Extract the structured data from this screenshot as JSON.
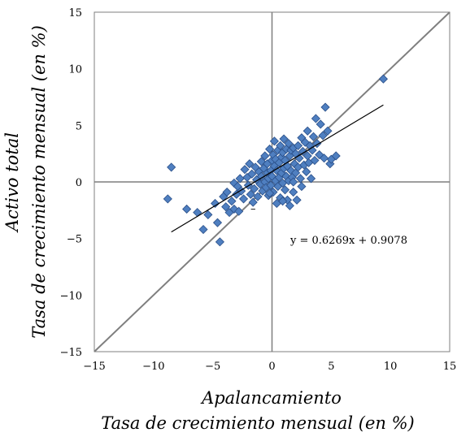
{
  "chart_data": {
    "type": "scatter",
    "title": "",
    "xlabel": "Apalancamiento",
    "xlabel_sub": "Tasa de crecimiento mensual (en %)",
    "ylabel": "Activo total",
    "ylabel_sub": "Tasa de crecimiento mensual (en %)",
    "xlim": [
      -15,
      15
    ],
    "ylim": [
      -15,
      15
    ],
    "xticks": [
      "−15",
      "−10",
      "−5",
      "0",
      "5",
      "10",
      "15"
    ],
    "yticks": [
      "15",
      "10",
      "5",
      "0",
      "−5",
      "−10",
      "−15"
    ],
    "grid": false,
    "legend": "none",
    "marker_color": "#4f7fc0",
    "marker_edge_color": "#2a4f88",
    "reference_line_color": "#7f7f7f",
    "trendline_color": "#000000",
    "annotation_minus": "–",
    "trendline": {
      "equation": "y = 0.6269x + 0.9078",
      "slope": 0.6269,
      "intercept": 0.9078,
      "x_range": [
        -8.5,
        9.4
      ]
    },
    "reference_line": {
      "label": "",
      "x": [
        -15,
        15
      ],
      "y": [
        -15,
        15
      ]
    },
    "points": [
      [
        -8.8,
        -1.5
      ],
      [
        -8.5,
        1.3
      ],
      [
        -7.2,
        -2.4
      ],
      [
        -6.3,
        -2.7
      ],
      [
        -5.8,
        -4.2
      ],
      [
        -5.4,
        -2.9
      ],
      [
        -4.6,
        -3.6
      ],
      [
        -4.4,
        -5.3
      ],
      [
        -4.8,
        -1.9
      ],
      [
        -4.1,
        -1.3
      ],
      [
        -3.9,
        -2.2
      ],
      [
        -3.6,
        -2.7
      ],
      [
        -3.4,
        -1.7
      ],
      [
        -3.2,
        -2.4
      ],
      [
        -3.0,
        -1.1
      ],
      [
        -3.2,
        -0.1
      ],
      [
        -2.9,
        -0.4
      ],
      [
        -2.7,
        0.3
      ],
      [
        -2.6,
        -0.8
      ],
      [
        -2.4,
        -1.5
      ],
      [
        -2.3,
        1.1
      ],
      [
        -2.1,
        0.4
      ],
      [
        -2.0,
        -0.3
      ],
      [
        -1.9,
        1.6
      ],
      [
        -1.8,
        -1.1
      ],
      [
        -1.7,
        0.7
      ],
      [
        -1.5,
        -0.6
      ],
      [
        -1.4,
        1.3
      ],
      [
        -1.3,
        0.2
      ],
      [
        -1.2,
        -1.3
      ],
      [
        -1.1,
        0.9
      ],
      [
        -1.0,
        -0.2
      ],
      [
        -0.9,
        1.8
      ],
      [
        -0.9,
        0.5
      ],
      [
        -0.8,
        -0.8
      ],
      [
        -0.7,
        1.2
      ],
      [
        -0.6,
        0.0
      ],
      [
        -0.6,
        2.3
      ],
      [
        -0.5,
        -0.5
      ],
      [
        -0.4,
        0.8
      ],
      [
        -0.4,
        1.6
      ],
      [
        -0.3,
        -1.2
      ],
      [
        -0.3,
        0.3
      ],
      [
        -0.2,
        2.9
      ],
      [
        -0.1,
        1.0
      ],
      [
        -0.1,
        -0.3
      ],
      [
        0.0,
        1.9
      ],
      [
        0.0,
        0.5
      ],
      [
        0.1,
        2.4
      ],
      [
        0.1,
        -0.9
      ],
      [
        0.2,
        1.4
      ],
      [
        0.2,
        3.6
      ],
      [
        0.3,
        0.1
      ],
      [
        0.3,
        2.0
      ],
      [
        0.4,
        -1.9
      ],
      [
        0.4,
        1.0
      ],
      [
        0.5,
        2.8
      ],
      [
        0.5,
        -0.4
      ],
      [
        0.6,
        1.7
      ],
      [
        0.6,
        0.4
      ],
      [
        0.7,
        3.2
      ],
      [
        0.7,
        -1.4
      ],
      [
        0.8,
        2.2
      ],
      [
        0.8,
        0.8
      ],
      [
        0.9,
        -0.1
      ],
      [
        0.9,
        2.6
      ],
      [
        1.0,
        1.2
      ],
      [
        1.0,
        3.8
      ],
      [
        1.1,
        -0.7
      ],
      [
        1.1,
        1.9
      ],
      [
        1.2,
        0.5
      ],
      [
        1.2,
        2.9
      ],
      [
        1.3,
        -1.6
      ],
      [
        1.3,
        1.4
      ],
      [
        1.4,
        3.4
      ],
      [
        1.4,
        0.1
      ],
      [
        1.5,
        2.3
      ],
      [
        1.5,
        -2.1
      ],
      [
        1.6,
        1.0
      ],
      [
        1.6,
        2.8
      ],
      [
        1.7,
        0.4
      ],
      [
        1.8,
        3.0
      ],
      [
        1.8,
        -0.9
      ],
      [
        1.9,
        1.6
      ],
      [
        2.0,
        2.5
      ],
      [
        2.0,
        0.8
      ],
      [
        2.1,
        -1.6
      ],
      [
        2.2,
        3.2
      ],
      [
        2.2,
        1.3
      ],
      [
        2.3,
        2.1
      ],
      [
        2.4,
        0.3
      ],
      [
        2.5,
        3.9
      ],
      [
        2.5,
        -0.4
      ],
      [
        2.6,
        2.7
      ],
      [
        2.7,
        1.5
      ],
      [
        2.8,
        3.5
      ],
      [
        2.9,
        0.9
      ],
      [
        3.0,
        2.3
      ],
      [
        3.0,
        4.5
      ],
      [
        3.1,
        1.7
      ],
      [
        3.2,
        3.2
      ],
      [
        3.3,
        0.3
      ],
      [
        3.4,
        2.8
      ],
      [
        3.5,
        4.0
      ],
      [
        3.6,
        1.9
      ],
      [
        3.7,
        5.6
      ],
      [
        3.8,
        3.4
      ],
      [
        4.0,
        2.4
      ],
      [
        4.1,
        5.1
      ],
      [
        4.3,
        4.1
      ],
      [
        4.5,
        6.6
      ],
      [
        4.7,
        4.5
      ],
      [
        4.9,
        1.6
      ],
      [
        5.0,
        2.0
      ],
      [
        5.4,
        2.3
      ],
      [
        4.4,
        2.1
      ],
      [
        1.8,
        0.0
      ],
      [
        0.9,
        -1.7
      ],
      [
        -0.2,
        -1.0
      ],
      [
        -1.6,
        -1.8
      ],
      [
        -2.8,
        -2.6
      ],
      [
        -3.8,
        -0.9
      ],
      [
        9.4,
        9.1
      ]
    ]
  }
}
